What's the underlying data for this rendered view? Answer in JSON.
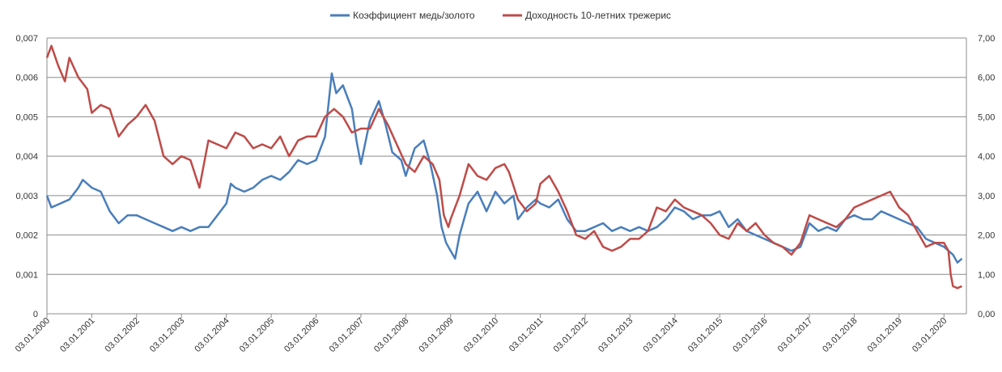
{
  "chart_data": {
    "type": "line",
    "legend_position": "top-center",
    "grid": true,
    "left_axis": {
      "min": 0,
      "max": 0.007,
      "step": 0.001,
      "tick_labels": [
        "0",
        "0,001",
        "0,002",
        "0,003",
        "0,004",
        "0,005",
        "0,006",
        "0,007"
      ]
    },
    "right_axis": {
      "min": 0,
      "max": 7,
      "step": 1,
      "tick_labels": [
        "0,00",
        "1,00",
        "2,00",
        "3,00",
        "4,00",
        "5,00",
        "6,00",
        "7,00"
      ]
    },
    "x_axis": {
      "start": 2000.0,
      "end": 2020.5,
      "tick_labels": [
        "03.01.2000",
        "03.01.2001",
        "03.01.2002",
        "03.01.2003",
        "03.01.2004",
        "03.01.2005",
        "03.01.2006",
        "03.01.2007",
        "03.01.2008",
        "03.01.2009",
        "03.01.2010",
        "03.01.2011",
        "03.01.2012",
        "03.01.2013",
        "03.01.2014",
        "03.01.2015",
        "03.01.2016",
        "03.01.2017",
        "03.01.2018",
        "03.01.2019",
        "03.01.2020"
      ]
    },
    "series": [
      {
        "name": "Коэффициент  медь/золото",
        "axis": "left",
        "color": "#4a7ebb",
        "x": [
          2000.0,
          2000.1,
          2000.3,
          2000.5,
          2000.7,
          2000.8,
          2001.0,
          2001.2,
          2001.4,
          2001.6,
          2001.8,
          2002.0,
          2002.2,
          2002.4,
          2002.6,
          2002.8,
          2003.0,
          2003.2,
          2003.4,
          2003.6,
          2003.8,
          2004.0,
          2004.1,
          2004.2,
          2004.4,
          2004.6,
          2004.8,
          2005.0,
          2005.2,
          2005.4,
          2005.6,
          2005.8,
          2006.0,
          2006.2,
          2006.35,
          2006.45,
          2006.6,
          2006.8,
          2006.9,
          2007.0,
          2007.2,
          2007.4,
          2007.55,
          2007.7,
          2007.9,
          2008.0,
          2008.2,
          2008.4,
          2008.55,
          2008.7,
          2008.8,
          2008.9,
          2009.0,
          2009.1,
          2009.2,
          2009.4,
          2009.6,
          2009.8,
          2010.0,
          2010.2,
          2010.4,
          2010.5,
          2010.7,
          2010.9,
          2011.0,
          2011.2,
          2011.4,
          2011.6,
          2011.8,
          2012.0,
          2012.2,
          2012.4,
          2012.6,
          2012.8,
          2013.0,
          2013.2,
          2013.4,
          2013.6,
          2013.8,
          2014.0,
          2014.2,
          2014.4,
          2014.6,
          2014.8,
          2015.0,
          2015.2,
          2015.4,
          2015.6,
          2015.8,
          2016.0,
          2016.2,
          2016.4,
          2016.6,
          2016.8,
          2017.0,
          2017.2,
          2017.4,
          2017.6,
          2017.8,
          2018.0,
          2018.2,
          2018.4,
          2018.6,
          2018.8,
          2019.0,
          2019.2,
          2019.4,
          2019.6,
          2019.8,
          2020.0,
          2020.1,
          2020.2,
          2020.3,
          2020.4
        ],
        "values": [
          0.003,
          0.0027,
          0.0028,
          0.0029,
          0.0032,
          0.0034,
          0.0032,
          0.0031,
          0.0026,
          0.0023,
          0.0025,
          0.0025,
          0.0024,
          0.0023,
          0.0022,
          0.0021,
          0.0022,
          0.0021,
          0.0022,
          0.0022,
          0.0025,
          0.0028,
          0.0033,
          0.0032,
          0.0031,
          0.0032,
          0.0034,
          0.0035,
          0.0034,
          0.0036,
          0.0039,
          0.0038,
          0.0039,
          0.0045,
          0.0061,
          0.0056,
          0.0058,
          0.0052,
          0.0044,
          0.0038,
          0.0049,
          0.0054,
          0.0048,
          0.0041,
          0.0039,
          0.0035,
          0.0042,
          0.0044,
          0.0038,
          0.003,
          0.0022,
          0.0018,
          0.0016,
          0.0014,
          0.002,
          0.0028,
          0.0031,
          0.0026,
          0.0031,
          0.0028,
          0.003,
          0.0024,
          0.0027,
          0.0029,
          0.0028,
          0.0027,
          0.0029,
          0.0024,
          0.0021,
          0.0021,
          0.0022,
          0.0023,
          0.0021,
          0.0022,
          0.0021,
          0.0022,
          0.0021,
          0.0022,
          0.0024,
          0.0027,
          0.0026,
          0.0024,
          0.0025,
          0.0025,
          0.0026,
          0.0022,
          0.0024,
          0.0021,
          0.002,
          0.0019,
          0.0018,
          0.0017,
          0.0016,
          0.0017,
          0.0023,
          0.0021,
          0.0022,
          0.0021,
          0.0024,
          0.0025,
          0.0024,
          0.0024,
          0.0026,
          0.0025,
          0.0024,
          0.0023,
          0.0022,
          0.0019,
          0.0018,
          0.0017,
          0.0016,
          0.0015,
          0.0013,
          0.0014
        ]
      },
      {
        "name": "Доходность 10-летних трежерис",
        "axis": "right",
        "color": "#be4b48",
        "x": [
          2000.0,
          2000.1,
          2000.25,
          2000.4,
          2000.5,
          2000.7,
          2000.9,
          2001.0,
          2001.2,
          2001.4,
          2001.6,
          2001.8,
          2002.0,
          2002.2,
          2002.4,
          2002.6,
          2002.8,
          2003.0,
          2003.2,
          2003.4,
          2003.6,
          2003.8,
          2004.0,
          2004.2,
          2004.4,
          2004.6,
          2004.8,
          2005.0,
          2005.2,
          2005.4,
          2005.6,
          2005.8,
          2006.0,
          2006.2,
          2006.4,
          2006.6,
          2006.8,
          2007.0,
          2007.2,
          2007.4,
          2007.6,
          2007.8,
          2008.0,
          2008.2,
          2008.4,
          2008.6,
          2008.75,
          2008.85,
          2008.95,
          2009.0,
          2009.2,
          2009.4,
          2009.6,
          2009.8,
          2010.0,
          2010.2,
          2010.3,
          2010.5,
          2010.7,
          2010.9,
          2011.0,
          2011.2,
          2011.4,
          2011.6,
          2011.8,
          2012.0,
          2012.2,
          2012.4,
          2012.6,
          2012.8,
          2013.0,
          2013.2,
          2013.4,
          2013.6,
          2013.8,
          2014.0,
          2014.2,
          2014.4,
          2014.6,
          2014.8,
          2015.0,
          2015.2,
          2015.4,
          2015.6,
          2015.8,
          2016.0,
          2016.2,
          2016.4,
          2016.6,
          2016.8,
          2017.0,
          2017.2,
          2017.4,
          2017.6,
          2017.8,
          2018.0,
          2018.2,
          2018.4,
          2018.6,
          2018.8,
          2019.0,
          2019.2,
          2019.4,
          2019.6,
          2019.8,
          2020.0,
          2020.1,
          2020.15,
          2020.2,
          2020.3,
          2020.4
        ],
        "values": [
          6.5,
          6.8,
          6.3,
          5.9,
          6.5,
          6.0,
          5.7,
          5.1,
          5.3,
          5.2,
          4.5,
          4.8,
          5.0,
          5.3,
          4.9,
          4.0,
          3.8,
          4.0,
          3.9,
          3.2,
          4.4,
          4.3,
          4.2,
          4.6,
          4.5,
          4.2,
          4.3,
          4.2,
          4.5,
          4.0,
          4.4,
          4.5,
          4.5,
          5.0,
          5.2,
          5.0,
          4.6,
          4.7,
          4.7,
          5.2,
          4.8,
          4.3,
          3.8,
          3.6,
          4.0,
          3.8,
          3.4,
          2.5,
          2.2,
          2.4,
          3.0,
          3.8,
          3.5,
          3.4,
          3.7,
          3.8,
          3.6,
          2.9,
          2.6,
          2.8,
          3.3,
          3.5,
          3.1,
          2.6,
          2.0,
          1.9,
          2.1,
          1.7,
          1.6,
          1.7,
          1.9,
          1.9,
          2.1,
          2.7,
          2.6,
          2.9,
          2.7,
          2.6,
          2.5,
          2.3,
          2.0,
          1.9,
          2.3,
          2.1,
          2.3,
          2.0,
          1.8,
          1.7,
          1.5,
          1.8,
          2.5,
          2.4,
          2.3,
          2.2,
          2.4,
          2.7,
          2.8,
          2.9,
          3.0,
          3.1,
          2.7,
          2.5,
          2.1,
          1.7,
          1.8,
          1.8,
          1.6,
          1.0,
          0.7,
          0.65,
          0.7
        ]
      }
    ]
  }
}
